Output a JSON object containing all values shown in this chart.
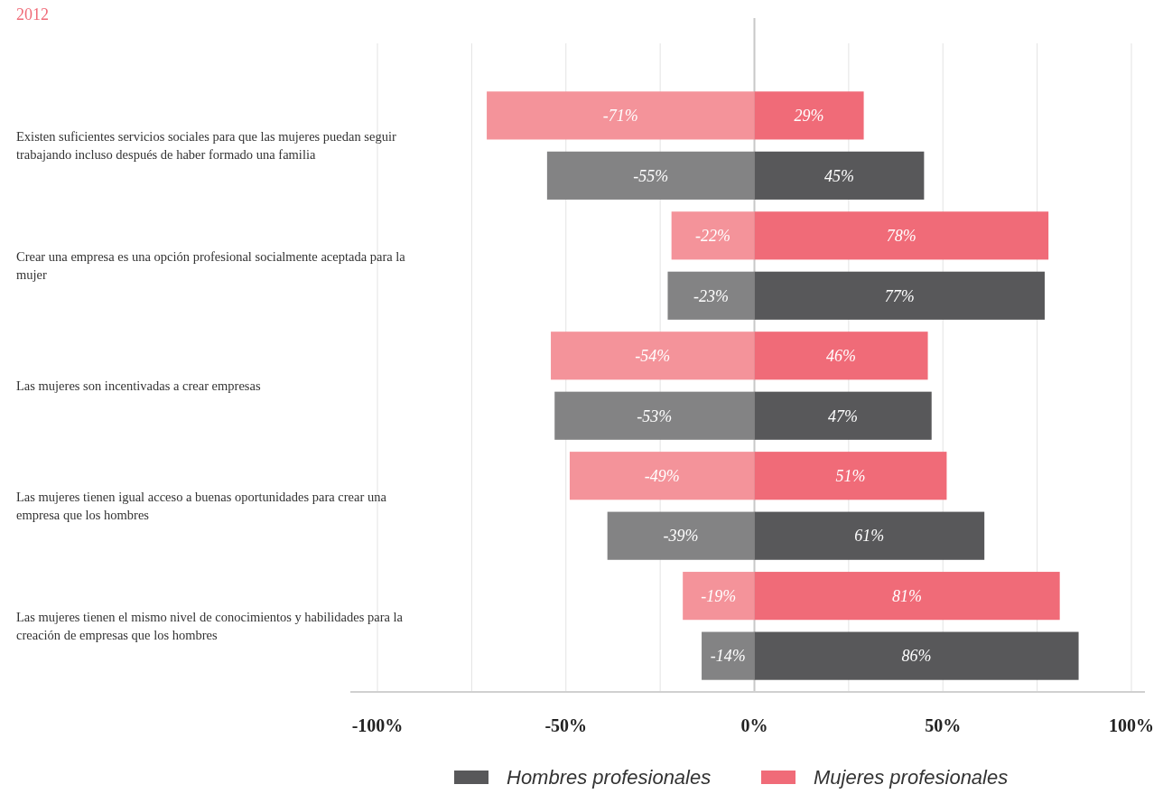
{
  "chart_data": {
    "type": "bar",
    "title": "2012",
    "orientation": "horizontal",
    "stacked": true,
    "categories": [
      "Existen suficientes servicios sociales para que las mujeres puedan seguir trabajando incluso después de haber formado una familia",
      null,
      "Crear una empresa es una opción profesional socialmente aceptada para la mujer",
      null,
      "Las mujeres son incentivadas a crear empresas",
      null,
      "Las mujeres tienen igual acceso a buenas oportunidades para crear una empresa que los hombres",
      null,
      "Las mujeres tienen el mismo nivel de conocimientos y habilidades para la creación de empresas que los hombres",
      null
    ],
    "series": [
      {
        "color": "#f4939a",
        "values": [
          -71,
          null,
          -22,
          null,
          -54,
          null,
          -49,
          null,
          -19,
          null
        ],
        "value_labels": [
          "-71%",
          null,
          "-22%",
          null,
          "-54%",
          null,
          "-49%",
          null,
          "-19%",
          null
        ]
      },
      {
        "name": "Mujeres profesionales",
        "color": "#f06b78",
        "values": [
          29,
          null,
          78,
          null,
          46,
          null,
          51,
          null,
          81,
          null
        ],
        "value_labels": [
          "29%",
          null,
          "78%",
          null,
          "46%",
          null,
          "51%",
          null,
          "81%",
          null
        ]
      },
      {
        "color": "#838384",
        "values": [
          null,
          -55,
          null,
          -23,
          null,
          -53,
          null,
          -39,
          null,
          -14
        ],
        "value_labels": [
          null,
          "-55%",
          null,
          "-23%",
          null,
          "-53%",
          null,
          "-39%",
          null,
          "-14%"
        ]
      },
      {
        "name": "Hombres profesionales",
        "color": "#58585a",
        "values": [
          null,
          45,
          null,
          77,
          null,
          47,
          null,
          61,
          null,
          86
        ],
        "value_labels": [
          null,
          "45%",
          null,
          "77%",
          null,
          "47%",
          null,
          "61%",
          null,
          "86%"
        ]
      }
    ],
    "xlim": [
      -100,
      100
    ],
    "xticks": [
      {
        "value": -100,
        "label": "-100%"
      },
      {
        "value": -75,
        "label": null
      },
      {
        "value": -50,
        "label": "-50%"
      },
      {
        "value": -25,
        "label": null
      },
      {
        "value": 0,
        "label": "0%"
      },
      {
        "value": 25,
        "label": null
      },
      {
        "value": 50,
        "label": "50%"
      },
      {
        "value": 75,
        "label": null
      },
      {
        "value": 100,
        "label": "100%"
      }
    ],
    "grid": "x",
    "legend": "bottom"
  }
}
